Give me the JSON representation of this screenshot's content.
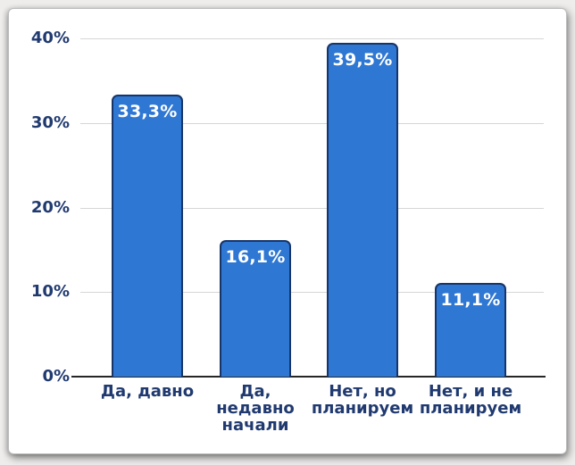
{
  "chart_data": {
    "type": "bar",
    "title": "",
    "xlabel": "",
    "ylabel": "",
    "categories": [
      "Да, давно",
      "Да, недавно начали",
      "Нет, но планируем",
      "Нет, и не планируем"
    ],
    "category_display_lines": [
      [
        "Да, давно"
      ],
      [
        "Да,",
        "недавно",
        "начали"
      ],
      [
        "Нет, но",
        "планируем"
      ],
      [
        "Нет, и не",
        "планируем"
      ]
    ],
    "values": [
      33.3,
      16.1,
      39.5,
      11.1
    ],
    "value_labels": [
      "33,3%",
      "16,1%",
      "39,5%",
      "11,1%"
    ],
    "y_ticks": [
      0,
      10,
      20,
      30,
      40
    ],
    "y_tick_labels": [
      "0%",
      "10%",
      "20%",
      "30%",
      "40%"
    ],
    "ylim": [
      0,
      40
    ],
    "grid": "horizontal",
    "legend": "none",
    "colors": {
      "bar_fill": "#2e77d3",
      "bar_border": "#173569",
      "value_label_text": "#ffffff",
      "axis_text": "#203a70",
      "gridline": "#d6d6d6",
      "axis_line": "#262626",
      "card_background": "#ffffff"
    }
  }
}
